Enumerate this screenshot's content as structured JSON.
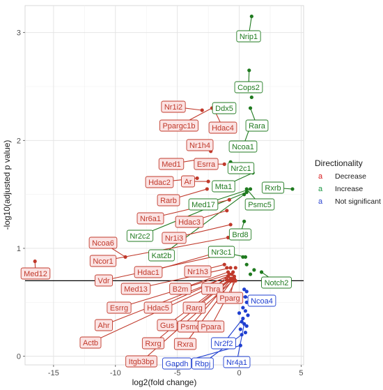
{
  "chart_data": {
    "type": "scatter",
    "title": "",
    "xlabel": "log2(fold change)",
    "ylabel": "-log10(adjusted p value)",
    "xlim": [
      -17.3,
      5.2
    ],
    "ylim": [
      -0.08,
      3.25
    ],
    "xticks": [
      -15,
      -10,
      -5,
      0,
      5
    ],
    "yticks": [
      0,
      1,
      2,
      3
    ],
    "grid": true,
    "threshold_y": 0.7,
    "legend": {
      "title": "Directionality",
      "position": "right",
      "entries": [
        {
          "key": "a",
          "name": "Decrease",
          "color": "#d7191c"
        },
        {
          "key": "a",
          "name": "Increase",
          "color": "#1a9641"
        },
        {
          "key": "a",
          "name": "Not significant",
          "color": "#2b44d0"
        }
      ]
    },
    "colors": {
      "Decrease": "#c0392b",
      "Increase": "#1f7a1f",
      "Not significant": "#1f3fd0"
    },
    "labeled_points": [
      {
        "label": "Nrip1",
        "x": 1.0,
        "y": 3.15,
        "group": "Increase"
      },
      {
        "label": "Cops2",
        "x": 0.8,
        "y": 2.65,
        "group": "Increase"
      },
      {
        "label": "Ddx5",
        "x": -1.5,
        "y": 2.3,
        "group": "Increase"
      },
      {
        "label": "Rara",
        "x": 0.9,
        "y": 2.3,
        "group": "Increase"
      },
      {
        "label": "Ncoa1",
        "x": 0.8,
        "y": 2.1,
        "group": "Increase"
      },
      {
        "label": "Nr2c1",
        "x": -0.7,
        "y": 1.8,
        "group": "Increase"
      },
      {
        "label": "Rxrb",
        "x": 4.3,
        "y": 1.55,
        "group": "Increase"
      },
      {
        "label": "Mta1",
        "x": 1.1,
        "y": 1.7,
        "group": "Increase"
      },
      {
        "label": "Med17",
        "x": 0.9,
        "y": 1.55,
        "group": "Increase"
      },
      {
        "label": "Psmc5",
        "x": 0.6,
        "y": 1.55,
        "group": "Increase"
      },
      {
        "label": "Nr2c2",
        "x": 0.6,
        "y": 1.52,
        "group": "Increase"
      },
      {
        "label": "Kat2b",
        "x": 0.4,
        "y": 1.5,
        "group": "Increase"
      },
      {
        "label": "Brd8",
        "x": 0.4,
        "y": 1.25,
        "group": "Increase"
      },
      {
        "label": "Nr3c1",
        "x": 0.5,
        "y": 0.92,
        "group": "Increase"
      },
      {
        "label": "Notch2",
        "x": 1.8,
        "y": 0.78,
        "group": "Increase"
      },
      {
        "label": "Nr1i2",
        "x": -3.0,
        "y": 2.28,
        "group": "Decrease"
      },
      {
        "label": "Ppargc1b",
        "x": -2.2,
        "y": 2.3,
        "group": "Decrease"
      },
      {
        "label": "Hdac4",
        "x": -2.0,
        "y": 2.28,
        "group": "Decrease"
      },
      {
        "label": "Nr1h4",
        "x": -2.3,
        "y": 1.9,
        "group": "Decrease"
      },
      {
        "label": "Med1",
        "x": -3.5,
        "y": 1.82,
        "group": "Decrease"
      },
      {
        "label": "Esrra",
        "x": -1.2,
        "y": 1.78,
        "group": "Decrease"
      },
      {
        "label": "Hdac2",
        "x": -3.4,
        "y": 1.65,
        "group": "Decrease"
      },
      {
        "label": "Ar",
        "x": -2.5,
        "y": 1.62,
        "group": "Decrease"
      },
      {
        "label": "Rarb",
        "x": -2.6,
        "y": 1.55,
        "group": "Decrease"
      },
      {
        "label": "Nr6a1",
        "x": -0.8,
        "y": 1.45,
        "group": "Decrease"
      },
      {
        "label": "Hdac3",
        "x": -1.0,
        "y": 1.35,
        "group": "Decrease"
      },
      {
        "label": "Nr1i3",
        "x": -0.7,
        "y": 1.22,
        "group": "Decrease"
      },
      {
        "label": "Ncoa6",
        "x": -9.2,
        "y": 0.92,
        "group": "Decrease"
      },
      {
        "label": "Ncor1",
        "x": -0.9,
        "y": 1.1,
        "group": "Decrease"
      },
      {
        "label": "Med12",
        "x": -16.5,
        "y": 0.88,
        "group": "Decrease"
      },
      {
        "label": "Hdac1",
        "x": -0.6,
        "y": 1.0,
        "group": "Decrease"
      },
      {
        "label": "Vdr",
        "x": -1.0,
        "y": 0.95,
        "group": "Decrease"
      },
      {
        "label": "Nr1h3",
        "x": -1.2,
        "y": 0.85,
        "group": "Decrease"
      },
      {
        "label": "Med13",
        "x": -0.7,
        "y": 0.82,
        "group": "Decrease"
      },
      {
        "label": "B2m",
        "x": -0.9,
        "y": 0.78,
        "group": "Decrease"
      },
      {
        "label": "Thra",
        "x": -0.5,
        "y": 0.78,
        "group": "Decrease"
      },
      {
        "label": "Esrrg",
        "x": -0.8,
        "y": 0.76,
        "group": "Decrease"
      },
      {
        "label": "Hdac5",
        "x": -0.6,
        "y": 0.76,
        "group": "Decrease"
      },
      {
        "label": "Rarg",
        "x": -0.4,
        "y": 0.74,
        "group": "Decrease"
      },
      {
        "label": "Pparg",
        "x": -0.4,
        "y": 0.72,
        "group": "Decrease"
      },
      {
        "label": "Ahr",
        "x": -0.9,
        "y": 0.74,
        "group": "Decrease"
      },
      {
        "label": "Gus",
        "x": -0.7,
        "y": 0.72,
        "group": "Decrease"
      },
      {
        "label": "Psmc",
        "x": -0.6,
        "y": 0.72,
        "group": "Decrease"
      },
      {
        "label": "Ppara",
        "x": -0.3,
        "y": 0.7,
        "group": "Decrease"
      },
      {
        "label": "Actb",
        "x": -1.0,
        "y": 0.71,
        "group": "Decrease"
      },
      {
        "label": "Rxrg",
        "x": -0.8,
        "y": 0.7,
        "group": "Decrease"
      },
      {
        "label": "Rxra",
        "x": -0.6,
        "y": 0.7,
        "group": "Decrease"
      },
      {
        "label": "Itgb3bp",
        "x": -0.5,
        "y": 0.7,
        "group": "Decrease"
      },
      {
        "label": "Ncoa4",
        "x": 0.5,
        "y": 0.55,
        "group": "Not significant"
      },
      {
        "label": "Nr2f2",
        "x": 0.3,
        "y": 0.35,
        "group": "Not significant"
      },
      {
        "label": "Nr4a1",
        "x": 0.4,
        "y": 0.3,
        "group": "Not significant"
      },
      {
        "label": "Rbpj",
        "x": 0.2,
        "y": 0.2,
        "group": "Not significant"
      },
      {
        "label": "Gapdh",
        "x": 0.1,
        "y": 0.1,
        "group": "Not significant"
      }
    ],
    "unlabeled_points": [
      {
        "x": 1.0,
        "y": 2.4,
        "group": "Increase"
      },
      {
        "x": 0.3,
        "y": 0.92,
        "group": "Increase"
      },
      {
        "x": 0.6,
        "y": 0.85,
        "group": "Increase"
      },
      {
        "x": 1.2,
        "y": 0.8,
        "group": "Increase"
      },
      {
        "x": 0.9,
        "y": 0.76,
        "group": "Increase"
      },
      {
        "x": -1.0,
        "y": 0.82,
        "group": "Decrease"
      },
      {
        "x": -0.3,
        "y": 0.82,
        "group": "Decrease"
      },
      {
        "x": 0.4,
        "y": 0.62,
        "group": "Not significant"
      },
      {
        "x": 0.6,
        "y": 0.6,
        "group": "Not significant"
      },
      {
        "x": 0.2,
        "y": 0.55,
        "group": "Not significant"
      },
      {
        "x": 0.6,
        "y": 0.5,
        "group": "Not significant"
      },
      {
        "x": 0.3,
        "y": 0.45,
        "group": "Not significant"
      },
      {
        "x": 0.5,
        "y": 0.42,
        "group": "Not significant"
      },
      {
        "x": 0.0,
        "y": 0.4,
        "group": "Not significant"
      },
      {
        "x": 0.7,
        "y": 0.38,
        "group": "Not significant"
      },
      {
        "x": 0.2,
        "y": 0.32,
        "group": "Not significant"
      },
      {
        "x": 0.6,
        "y": 0.28,
        "group": "Not significant"
      },
      {
        "x": 0.1,
        "y": 0.25,
        "group": "Not significant"
      },
      {
        "x": 0.5,
        "y": 0.22,
        "group": "Not significant"
      }
    ]
  }
}
